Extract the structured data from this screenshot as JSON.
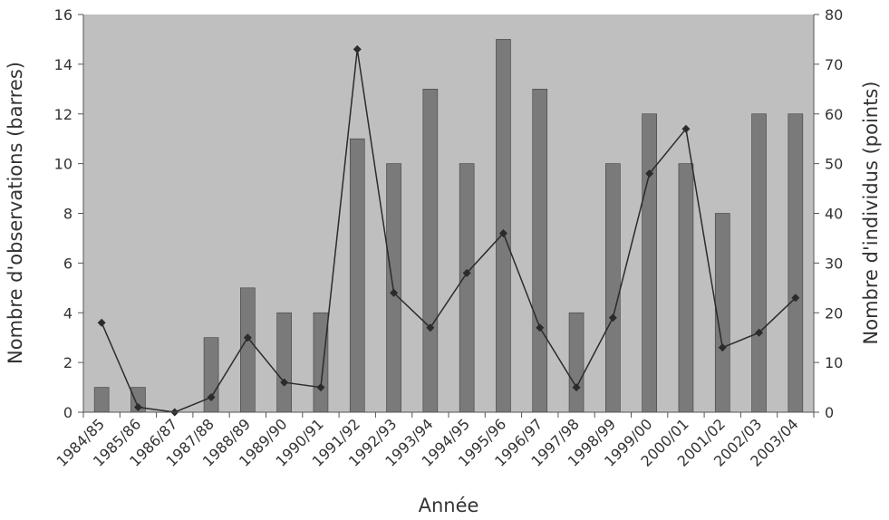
{
  "chart_data": {
    "type": "bar",
    "categories": [
      "1984/85",
      "1985/86",
      "1986/87",
      "1987/88",
      "1988/89",
      "1989/90",
      "1990/91",
      "1991/92",
      "1992/93",
      "1993/94",
      "1994/95",
      "1995/96",
      "1996/97",
      "1997/98",
      "1998/99",
      "1999/00",
      "2000/01",
      "2001/02",
      "2002/03",
      "2003/04"
    ],
    "series": [
      {
        "name": "Nombre d'observations (barres)",
        "type": "bar",
        "axis": "left",
        "values": [
          1,
          1,
          0,
          3,
          5,
          4,
          4,
          11,
          10,
          13,
          10,
          15,
          13,
          4,
          10,
          12,
          10,
          8,
          12,
          12
        ]
      },
      {
        "name": "Nombre d'individus (points)",
        "type": "line",
        "axis": "right",
        "values": [
          18,
          1,
          0,
          3,
          15,
          6,
          5,
          73,
          24,
          17,
          28,
          36,
          17,
          5,
          19,
          48,
          57,
          13,
          16,
          23
        ]
      }
    ],
    "xlabel": "Année",
    "ylabel": "Nombre d'observations (barres)",
    "y2label": "Nombre d'individus (points)",
    "ylim": [
      0,
      16
    ],
    "y2lim": [
      0,
      80
    ],
    "yticks": [
      "0",
      "2",
      "4",
      "6",
      "8",
      "10",
      "12",
      "14",
      "16"
    ],
    "y2ticks": [
      "0",
      "10",
      "20",
      "30",
      "40",
      "50",
      "60",
      "70",
      "80"
    ],
    "grid": false,
    "colors": {
      "plot_bg": "#bfbfbf",
      "bar": "#7a7a7a",
      "bar_edge": "#3f3f3f",
      "line": "#2b2b2b",
      "text": "#333333"
    }
  }
}
